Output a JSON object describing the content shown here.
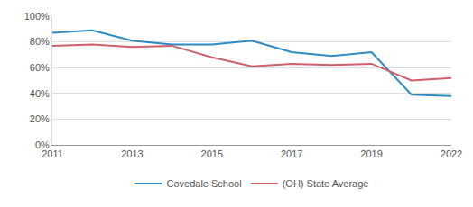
{
  "chart_data": {
    "type": "line",
    "categories": [
      "2011",
      null,
      "2013",
      null,
      "2015",
      null,
      "2017",
      null,
      "2019",
      null,
      "2022"
    ],
    "series": [
      {
        "name": "Covedale School",
        "color": "#2b8cc4",
        "values": [
          87,
          89,
          81,
          78,
          78,
          81,
          72,
          69,
          72,
          39,
          38
        ]
      },
      {
        "name": "(OH) State Average",
        "color": "#d0606a",
        "values": [
          77,
          78,
          76,
          77,
          68,
          61,
          63,
          62,
          63,
          50,
          52
        ]
      }
    ],
    "ylim": [
      0,
      100
    ],
    "yticks": [
      {
        "value": 0,
        "label": "0%"
      },
      {
        "value": 20,
        "label": "20%"
      },
      {
        "value": 40,
        "label": "40%"
      },
      {
        "value": 60,
        "label": "60%"
      },
      {
        "value": 80,
        "label": "80%"
      },
      {
        "value": 100,
        "label": "100%"
      }
    ],
    "grid": true,
    "legend": "bottom"
  }
}
